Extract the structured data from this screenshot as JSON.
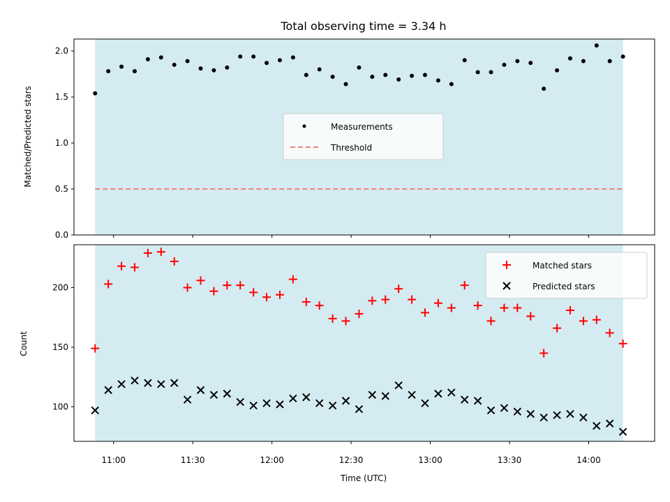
{
  "chart_data": [
    {
      "type": "scatter",
      "title": "Total observing time = 3.34 h",
      "ylabel": "Matched/Predicted stars",
      "xlabel": "",
      "ylim": [
        0.0,
        2.13
      ],
      "yticks": [
        "0.0",
        "0.5",
        "1.0",
        "1.5",
        "2.0"
      ],
      "ytick_values": [
        0.0,
        0.5,
        1.0,
        1.5,
        2.0
      ],
      "shaded_span": {
        "start": "10:53",
        "end": "14:13",
        "color": "#d4ebf1"
      },
      "threshold": {
        "name": "Threshold",
        "value": 0.5,
        "color": "#f08080",
        "style": "dashed"
      },
      "legend": {
        "position": "center",
        "entries": [
          "Measurements",
          "Threshold"
        ]
      },
      "series": [
        {
          "name": "Measurements",
          "color": "#000000",
          "marker": "dot",
          "x": [
            "10:53",
            "10:58",
            "11:03",
            "11:08",
            "11:13",
            "11:18",
            "11:23",
            "11:28",
            "11:33",
            "11:38",
            "11:43",
            "11:48",
            "11:53",
            "11:58",
            "12:03",
            "12:08",
            "12:13",
            "12:18",
            "12:23",
            "12:28",
            "12:33",
            "12:38",
            "12:43",
            "12:48",
            "12:53",
            "12:58",
            "13:03",
            "13:08",
            "13:13",
            "13:18",
            "13:23",
            "13:28",
            "13:33",
            "13:38",
            "13:43",
            "13:48",
            "13:53",
            "13:58",
            "14:03",
            "14:08",
            "14:13"
          ],
          "values": [
            1.54,
            1.78,
            1.83,
            1.78,
            1.91,
            1.93,
            1.85,
            1.89,
            1.81,
            1.79,
            1.82,
            1.94,
            1.94,
            1.87,
            1.9,
            1.93,
            1.74,
            1.8,
            1.72,
            1.64,
            1.82,
            1.72,
            1.74,
            1.69,
            1.73,
            1.74,
            1.68,
            1.64,
            1.9,
            1.77,
            1.77,
            1.85,
            1.89,
            1.87,
            1.59,
            1.79,
            1.92,
            1.89,
            2.06,
            1.89,
            1.94
          ]
        }
      ]
    },
    {
      "type": "scatter",
      "title": "",
      "ylabel": "Count",
      "xlabel": "Time (UTC)",
      "ylim": [
        71,
        236
      ],
      "yticks": [
        "100",
        "150",
        "200"
      ],
      "ytick_values": [
        100,
        150,
        200
      ],
      "xlim": [
        "10:45",
        "14:25"
      ],
      "xticks": [
        "11:00",
        "11:30",
        "12:00",
        "12:30",
        "13:00",
        "13:30",
        "14:00"
      ],
      "shaded_span": {
        "start": "10:53",
        "end": "14:13",
        "color": "#d4ebf1"
      },
      "legend": {
        "position": "top-right",
        "entries": [
          "Matched stars",
          "Predicted stars"
        ]
      },
      "series": [
        {
          "name": "Matched stars",
          "color": "#ff0000",
          "marker": "plus",
          "x": [
            "10:53",
            "10:58",
            "11:03",
            "11:08",
            "11:13",
            "11:18",
            "11:23",
            "11:28",
            "11:33",
            "11:38",
            "11:43",
            "11:48",
            "11:53",
            "11:58",
            "12:03",
            "12:08",
            "12:13",
            "12:18",
            "12:23",
            "12:28",
            "12:33",
            "12:38",
            "12:43",
            "12:48",
            "12:53",
            "12:58",
            "13:03",
            "13:08",
            "13:13",
            "13:18",
            "13:23",
            "13:28",
            "13:33",
            "13:38",
            "13:43",
            "13:48",
            "13:53",
            "13:58",
            "14:03",
            "14:08",
            "14:13"
          ],
          "values": [
            149,
            203,
            218,
            217,
            229,
            230,
            222,
            200,
            206,
            197,
            202,
            202,
            196,
            192,
            194,
            207,
            188,
            185,
            174,
            172,
            178,
            189,
            190,
            199,
            190,
            179,
            187,
            183,
            202,
            185,
            172,
            183,
            183,
            176,
            145,
            166,
            181,
            172,
            173,
            162,
            153
          ]
        },
        {
          "name": "Predicted stars",
          "color": "#000000",
          "marker": "x",
          "x": [
            "10:53",
            "10:58",
            "11:03",
            "11:08",
            "11:13",
            "11:18",
            "11:23",
            "11:28",
            "11:33",
            "11:38",
            "11:43",
            "11:48",
            "11:53",
            "11:58",
            "12:03",
            "12:08",
            "12:13",
            "12:18",
            "12:23",
            "12:28",
            "12:33",
            "12:38",
            "12:43",
            "12:48",
            "12:53",
            "12:58",
            "13:03",
            "13:08",
            "13:13",
            "13:18",
            "13:23",
            "13:28",
            "13:33",
            "13:38",
            "13:43",
            "13:48",
            "13:53",
            "13:58",
            "14:03",
            "14:08",
            "14:13"
          ],
          "values": [
            97,
            114,
            119,
            122,
            120,
            119,
            120,
            106,
            114,
            110,
            111,
            104,
            101,
            103,
            102,
            107,
            108,
            103,
            101,
            105,
            98,
            110,
            109,
            118,
            110,
            103,
            111,
            112,
            106,
            105,
            97,
            99,
            96,
            94,
            91,
            93,
            94,
            91,
            84,
            86,
            79
          ]
        }
      ]
    }
  ]
}
